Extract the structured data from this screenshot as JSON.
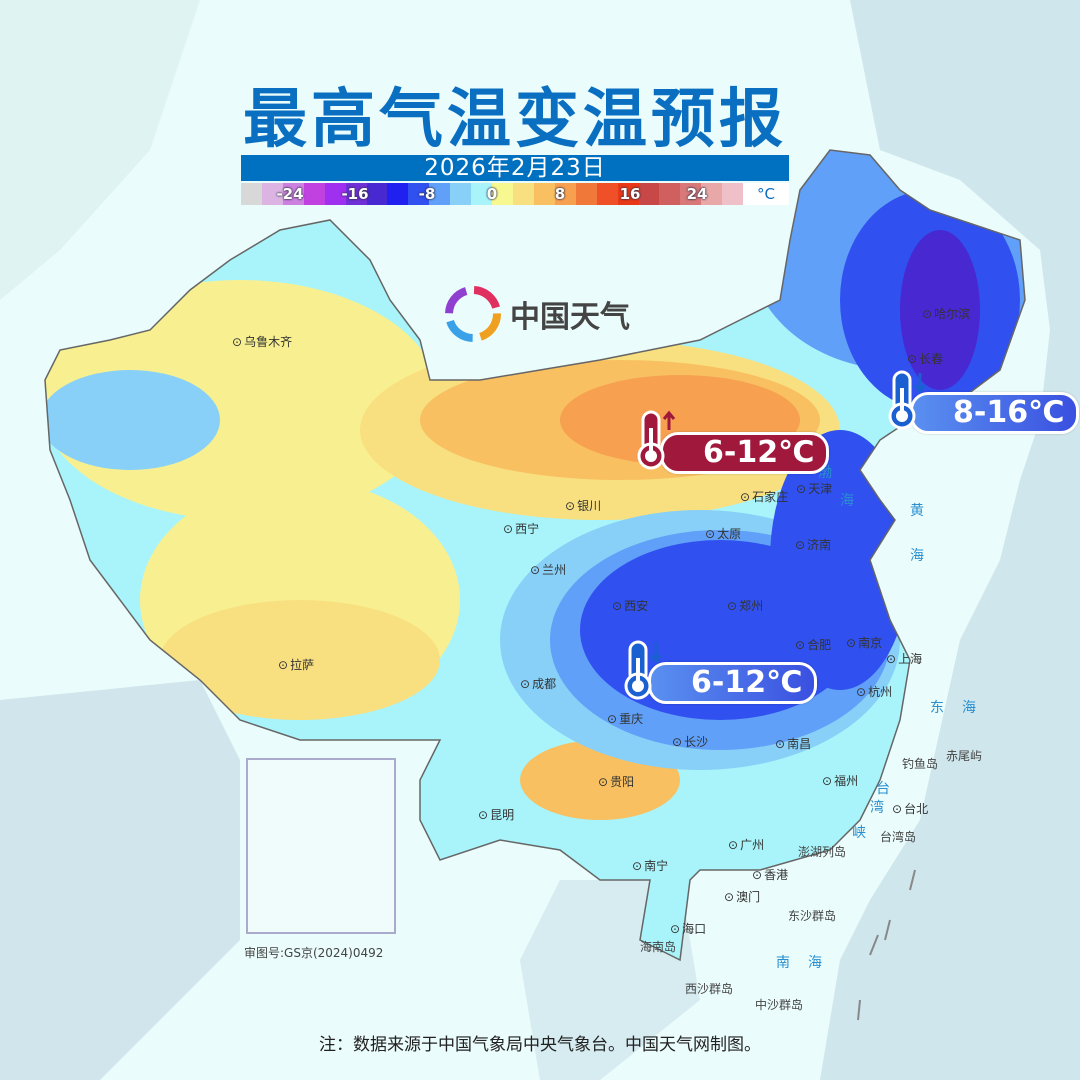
{
  "title": "最高气温变温预报",
  "date": "2026年2月23日",
  "legend": {
    "unit": "°C",
    "labels": [
      "-24",
      "-16",
      "-8",
      "0",
      "8",
      "16",
      "24"
    ],
    "colors": [
      "#d8d8d8",
      "#dcb4e4",
      "#cc80e0",
      "#c040e0",
      "#a030f0",
      "#7030d8",
      "#4828d0",
      "#2020f0",
      "#3050f0",
      "#60a0f8",
      "#88d0f8",
      "#a8f4fa",
      "#f8f890",
      "#f8e080",
      "#f8c060",
      "#f6a050",
      "#f07838",
      "#f05028",
      "#e83818",
      "#c84848",
      "#d06060",
      "#d87878",
      "#e8a8a8",
      "#f0c0c8"
    ]
  },
  "logo": {
    "text": "中国天气",
    "icon": "china-weather-logo"
  },
  "badges": [
    {
      "text": "6-12℃",
      "direction": "up",
      "color": "#a0183c"
    },
    {
      "text": "8-16℃",
      "direction": "down",
      "color": "#3a60e0"
    },
    {
      "text": "6-12℃",
      "direction": "down",
      "color": "#3a60e0"
    }
  ],
  "cities": [
    "乌鲁木齐",
    "哈尔滨",
    "长春",
    "天津",
    "石家庄",
    "太原",
    "银川",
    "西宁",
    "兰州",
    "济南",
    "郑州",
    "西安",
    "合肥",
    "南京",
    "上海",
    "杭州",
    "拉萨",
    "成都",
    "重庆",
    "长沙",
    "南昌",
    "福州",
    "台北",
    "贵阳",
    "昆明",
    "广州",
    "香港",
    "澳门",
    "南宁",
    "海口"
  ],
  "seas": [
    "渤",
    "海",
    "黄",
    "海",
    "东",
    "海",
    "台",
    "湾",
    "峡",
    "南",
    "海"
  ],
  "islands": [
    "钓鱼岛",
    "赤尾屿",
    "台湾岛",
    "澎湖列岛",
    "东沙群岛",
    "海南岛",
    "西沙群岛",
    "中沙群岛"
  ],
  "approval": "审图号:GS京(2024)0492",
  "note": "注：数据来源于中国气象局中央气象台。中国天气网制图。"
}
